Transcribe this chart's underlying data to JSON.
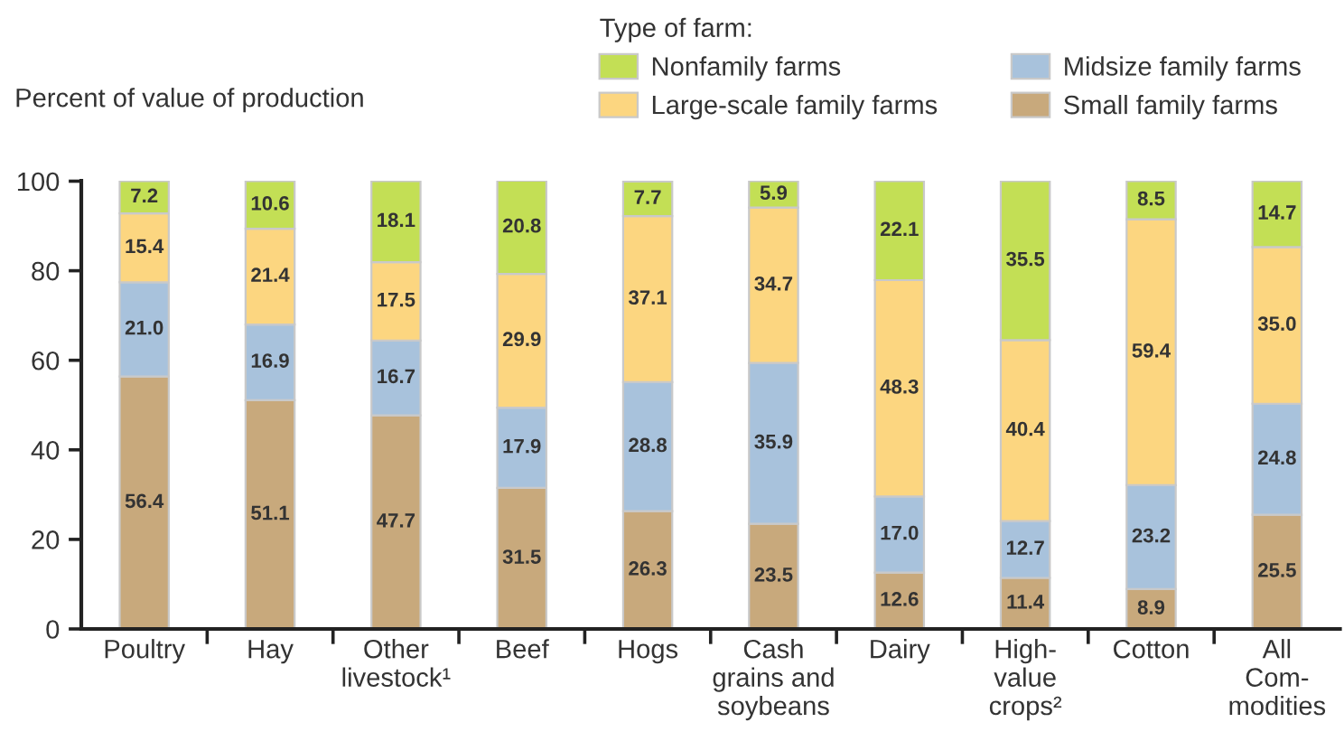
{
  "chart_data": {
    "type": "bar",
    "stacked": true,
    "ylabel": "Percent of value of production",
    "legend_title": "Type of farm:",
    "categories": [
      "Poultry",
      "Hay",
      "Other\nlivestock¹",
      "Beef",
      "Hogs",
      "Cash\ngrains and\nsoybeans",
      "Dairy",
      "High-\nvalue\ncrops²",
      "Cotton",
      "All\nCom-\nmodities"
    ],
    "series": [
      {
        "name": "Small family farms",
        "color": "#c8a97c",
        "values": [
          56.4,
          51.1,
          47.7,
          31.5,
          26.3,
          23.5,
          12.6,
          11.4,
          8.9,
          25.5
        ],
        "value_labels": [
          "56.4",
          "51.1",
          "47.7",
          "31.5",
          "26.3",
          "23.5",
          "12.6",
          "11.4",
          "8.9",
          "25.5"
        ]
      },
      {
        "name": "Midsize family farms",
        "color": "#a8c2dc",
        "values": [
          21.0,
          16.9,
          16.7,
          17.9,
          28.8,
          35.9,
          17.0,
          12.7,
          23.2,
          24.8
        ],
        "value_labels": [
          "21.0",
          "16.9",
          "16.7",
          "17.9",
          "28.8",
          "35.9",
          "17.0",
          "12.7",
          "23.2",
          "24.8"
        ]
      },
      {
        "name": "Large-scale family farms",
        "color": "#fcd680",
        "values": [
          15.4,
          21.4,
          17.5,
          29.9,
          37.1,
          34.7,
          48.3,
          40.4,
          59.4,
          35.0
        ],
        "value_labels": [
          "15.4",
          "21.4",
          "17.5",
          "29.9",
          "37.1",
          "34.7",
          "48.3",
          "40.4",
          "59.4",
          "35.0"
        ]
      },
      {
        "name": "Nonfamily farms",
        "color": "#c3df55",
        "values": [
          7.2,
          10.6,
          18.1,
          20.8,
          7.7,
          5.9,
          22.1,
          35.5,
          8.5,
          14.7
        ],
        "value_labels": [
          "7.2",
          "10.6",
          "18.1",
          "20.8",
          "7.7",
          "5.9",
          "22.1",
          "35.5",
          "8.5",
          "14.7"
        ]
      }
    ],
    "ylim": [
      0,
      100.1
    ],
    "yticks": [
      0,
      20,
      40,
      60,
      80,
      100
    ],
    "legend": "top",
    "grid": false
  }
}
